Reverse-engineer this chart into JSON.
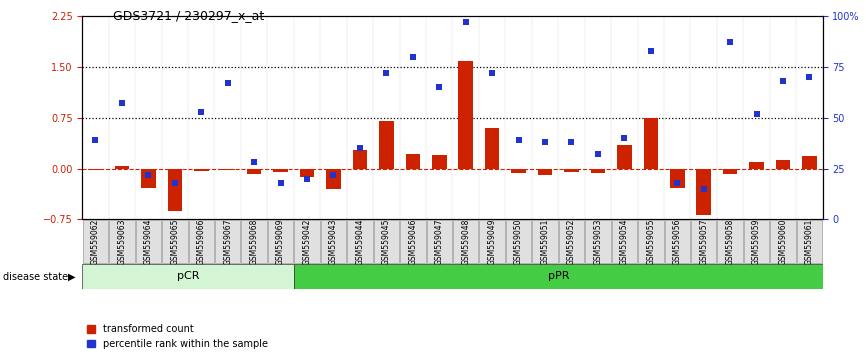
{
  "title": "GDS3721 / 230297_x_at",
  "samples": [
    "GSM559062",
    "GSM559063",
    "GSM559064",
    "GSM559065",
    "GSM559066",
    "GSM559067",
    "GSM559068",
    "GSM559069",
    "GSM559042",
    "GSM559043",
    "GSM559044",
    "GSM559045",
    "GSM559046",
    "GSM559047",
    "GSM559048",
    "GSM559049",
    "GSM559050",
    "GSM559051",
    "GSM559052",
    "GSM559053",
    "GSM559054",
    "GSM559055",
    "GSM559056",
    "GSM559057",
    "GSM559058",
    "GSM559059",
    "GSM559060",
    "GSM559061"
  ],
  "transformed_count": [
    -0.02,
    0.04,
    -0.28,
    -0.62,
    -0.03,
    -0.02,
    -0.08,
    -0.05,
    -0.12,
    -0.3,
    0.28,
    0.7,
    0.22,
    0.2,
    1.58,
    0.6,
    -0.06,
    -0.1,
    -0.05,
    -0.06,
    0.35,
    0.75,
    -0.28,
    -0.68,
    -0.08,
    0.1,
    0.12,
    0.18
  ],
  "percentile_rank": [
    39,
    57,
    22,
    18,
    53,
    67,
    28,
    18,
    20,
    22,
    35,
    72,
    80,
    65,
    97,
    72,
    39,
    38,
    38,
    32,
    40,
    83,
    18,
    15,
    87,
    52,
    68,
    70
  ],
  "pCR_count": 8,
  "pPR_count": 20,
  "group_color_pCR": "#d4f5d4",
  "group_color_pPR": "#44cc44",
  "bar_color": "#cc2200",
  "scatter_color": "#2233cc",
  "left_ylim": [
    -0.75,
    2.25
  ],
  "right_ylim": [
    0,
    100
  ],
  "left_yticks": [
    -0.75,
    0,
    0.75,
    1.5,
    2.25
  ],
  "right_yticks": [
    0,
    25,
    50,
    75,
    100
  ],
  "hline_values": [
    0.75,
    1.5
  ],
  "zero_line_color": "#cc2200",
  "title_fontsize": 9,
  "tick_fontsize": 7,
  "sample_fontsize": 5.5
}
